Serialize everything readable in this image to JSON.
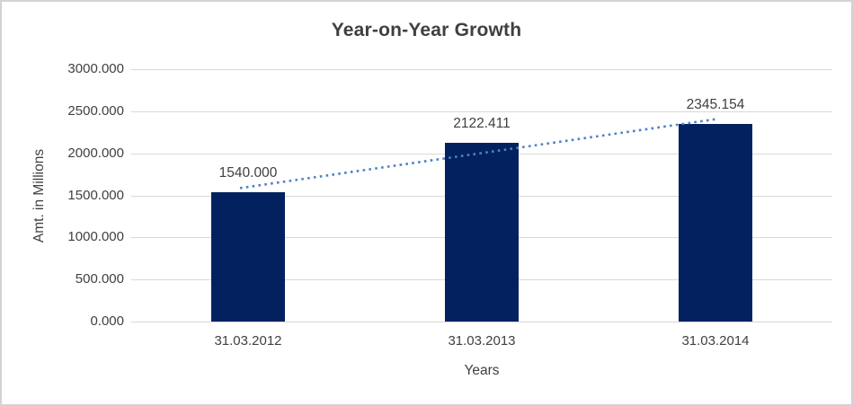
{
  "chart_data": {
    "type": "bar",
    "title": "Year-on-Year Growth",
    "xlabel": "Years",
    "ylabel": "Amt. in Millions",
    "categories": [
      "31.03.2012",
      "31.03.2013",
      "31.03.2014"
    ],
    "values": [
      1540.0,
      2122.411,
      2345.154
    ],
    "value_labels": [
      "1540.000",
      "2122.411",
      "2345.154"
    ],
    "ylim": [
      0,
      3000
    ],
    "ytick_step": 500,
    "ytick_labels": [
      "0.000",
      "500.000",
      "1000.000",
      "1500.000",
      "2000.000",
      "2500.000",
      "3000.000"
    ],
    "grid": true,
    "legend": "none",
    "trendline": {
      "type": "linear",
      "style": "dotted",
      "values_at_categories": [
        1599.92,
        2002.52,
        2405.11
      ]
    },
    "colors": {
      "bar": "#03215f",
      "trendline": "#4e82c4",
      "gridline": "#d9d9d9",
      "axis_line": "#d6d6d6",
      "text": "#404040",
      "title_text": "#3f3f3f",
      "border": "#d3d3d3",
      "background": "#ffffff"
    }
  }
}
